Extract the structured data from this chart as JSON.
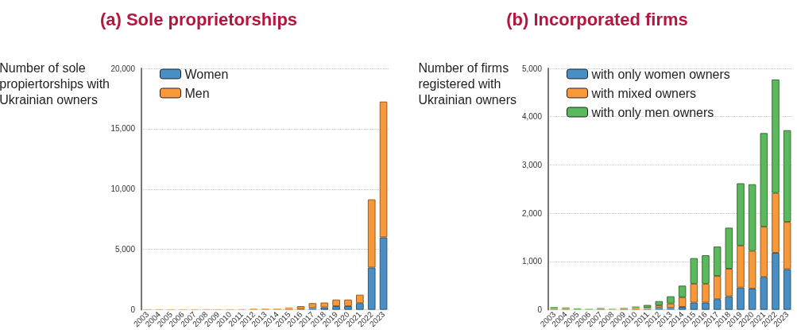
{
  "chart_data": [
    {
      "type": "bar",
      "title": "(a) Sole proprietorships",
      "ylabel": "Number of sole\npropiertorships with\nUkrainian owners",
      "categories": [
        "2003",
        "2004",
        "2005",
        "2006",
        "2007",
        "2008",
        "2009",
        "2010",
        "2011",
        "2012",
        "2013",
        "2014",
        "2015",
        "2016",
        "2017",
        "2018",
        "2019",
        "2020",
        "2021",
        "2022",
        "2023"
      ],
      "stacked": true,
      "series": [
        {
          "name": "Women",
          "color": "#4a8fc4",
          "values": [
            0,
            0,
            0,
            0,
            0,
            0,
            0,
            0,
            0,
            0,
            0,
            0,
            50,
            50,
            150,
            200,
            300,
            300,
            550,
            3500,
            6000
          ]
        },
        {
          "name": "Men",
          "color": "#f7983b",
          "values": [
            50,
            50,
            50,
            50,
            50,
            50,
            50,
            50,
            50,
            100,
            100,
            100,
            150,
            250,
            400,
            400,
            550,
            550,
            700,
            5650,
            11250
          ]
        }
      ],
      "ylim": [
        0,
        20000
      ],
      "yticks": [
        0,
        {
          "value": 5000,
          "label": "5,000"
        },
        {
          "value": 10000,
          "label": "10,000"
        },
        {
          "value": 15000,
          "label": "15,000"
        },
        {
          "value": 20000,
          "label": "20,000"
        }
      ],
      "grid": "y",
      "legend": "top left"
    },
    {
      "type": "bar",
      "title": "(b) Incorporated firms",
      "ylabel": "Number of firms\nregistered with\nUkrainian owners",
      "categories": [
        "2003",
        "2004",
        "2005",
        "2006",
        "2007",
        "2008",
        "2009",
        "2010",
        "2011",
        "2012",
        "2013",
        "2014",
        "2015",
        "2016",
        "2017",
        "2018",
        "2019",
        "2020",
        "2021",
        "2022",
        "2023"
      ],
      "stacked": true,
      "series": [
        {
          "name": "with only women owners",
          "color": "#4a8fc4",
          "values": [
            10,
            10,
            0,
            0,
            10,
            0,
            10,
            10,
            20,
            40,
            40,
            60,
            150,
            150,
            220,
            280,
            460,
            440,
            680,
            1180,
            840
          ]
        },
        {
          "name": "with mixed owners",
          "color": "#f7983b",
          "values": [
            10,
            10,
            10,
            10,
            10,
            10,
            10,
            20,
            20,
            50,
            90,
            200,
            390,
            390,
            480,
            570,
            870,
            780,
            1040,
            1240,
            980
          ]
        },
        {
          "name": "with only men owners",
          "color": "#5cb85c",
          "values": [
            40,
            30,
            20,
            10,
            20,
            10,
            20,
            40,
            60,
            90,
            150,
            240,
            530,
            590,
            610,
            850,
            1290,
            1380,
            1940,
            2350,
            1900
          ]
        }
      ],
      "ylim": [
        0,
        5000
      ],
      "yticks": [
        0,
        {
          "value": 1000,
          "label": "1,000"
        },
        {
          "value": 2000,
          "label": "2,000"
        },
        {
          "value": 3000,
          "label": "3,000"
        },
        {
          "value": 4000,
          "label": "4,000"
        },
        {
          "value": 5000,
          "label": "5,000"
        }
      ],
      "grid": "y",
      "legend": "top left"
    }
  ]
}
